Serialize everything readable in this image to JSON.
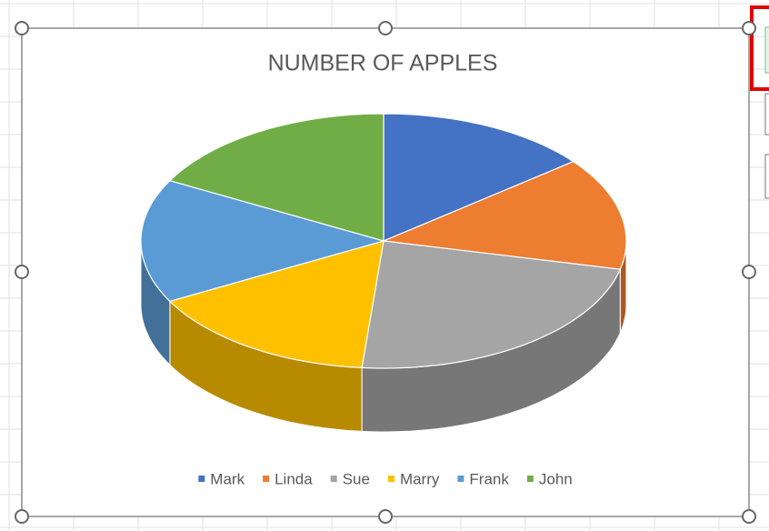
{
  "chart_data": {
    "type": "pie3d",
    "title": "NUMBER OF APPLES",
    "categories": [
      "Mark",
      "Linda",
      "Sue",
      "Marry",
      "Frank",
      "John"
    ],
    "values": [
      10,
      10,
      16,
      11,
      11,
      12
    ],
    "colors": [
      "#4472c4",
      "#ed7d31",
      "#a5a5a5",
      "#ffc000",
      "#5b9bd5",
      "#70ad47"
    ],
    "legend": "bottom"
  }
}
